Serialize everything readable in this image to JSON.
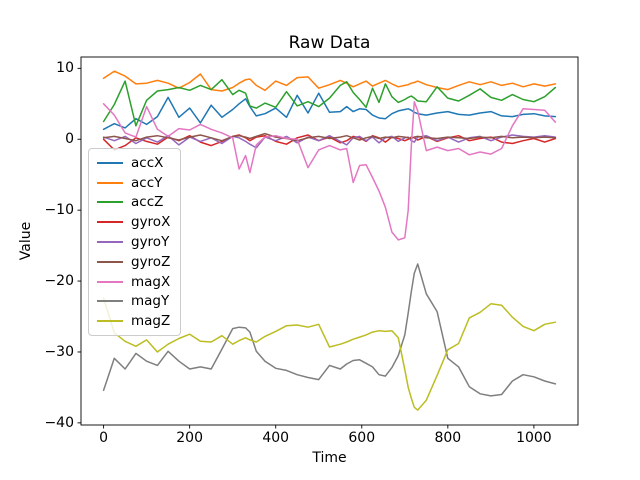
{
  "chart_data": {
    "type": "line",
    "title": "Raw Data",
    "xlabel": "Time",
    "ylabel": "Value",
    "xlim": [
      -52.5,
      1102.5
    ],
    "ylim": [
      -40.3,
      11.6
    ],
    "grid": false,
    "legend_position": "upper left",
    "x_ticks": [
      0,
      200,
      400,
      600,
      800,
      1000
    ],
    "x_tick_labels": [
      "0",
      "200",
      "400",
      "600",
      "800",
      "1000"
    ],
    "y_ticks": [
      10,
      0,
      -10,
      -20,
      -30,
      -40
    ],
    "y_tick_labels": [
      "10",
      "0",
      "−10",
      "−20",
      "−30",
      "−40"
    ],
    "x": [
      0,
      25,
      50,
      75,
      100,
      125,
      150,
      175,
      200,
      225,
      250,
      275,
      300,
      315,
      330,
      340,
      355,
      375,
      400,
      425,
      450,
      475,
      500,
      525,
      550,
      565,
      580,
      595,
      610,
      625,
      640,
      655,
      670,
      685,
      700,
      708,
      715,
      722,
      730,
      750,
      775,
      800,
      825,
      850,
      875,
      900,
      925,
      950,
      975,
      1000,
      1025,
      1050
    ],
    "series": [
      {
        "name": "accX",
        "color": "#1f77b4",
        "values": [
          1.4,
          2.2,
          1.6,
          2.9,
          2.1,
          3.2,
          5.9,
          3.1,
          4.4,
          2.3,
          4.8,
          3.1,
          4.2,
          5.0,
          5.7,
          4.6,
          3.3,
          3.6,
          4.4,
          3.1,
          6.2,
          3.7,
          6.5,
          3.8,
          3.9,
          4.6,
          3.9,
          4.3,
          4.2,
          3.4,
          3.0,
          2.9,
          3.6,
          4.0,
          4.2,
          4.3,
          4.1,
          3.8,
          3.6,
          3.4,
          3.7,
          3.9,
          3.5,
          3.4,
          3.7,
          3.9,
          3.3,
          3.2,
          3.5,
          3.6,
          3.3,
          3.2
        ]
      },
      {
        "name": "accY",
        "color": "#ff7f0e",
        "values": [
          8.6,
          9.6,
          8.9,
          7.8,
          7.9,
          8.3,
          7.9,
          7.2,
          8.0,
          9.2,
          7.0,
          6.8,
          7.3,
          7.9,
          8.4,
          8.5,
          7.6,
          6.9,
          8.2,
          7.6,
          8.7,
          8.8,
          7.2,
          7.7,
          8.3,
          7.9,
          7.4,
          7.8,
          8.2,
          7.5,
          7.9,
          8.3,
          7.8,
          7.4,
          7.6,
          7.7,
          7.9,
          8.0,
          8.2,
          7.7,
          7.3,
          7.0,
          7.6,
          8.1,
          7.7,
          8.1,
          7.6,
          7.9,
          7.4,
          7.8,
          7.5,
          7.8
        ]
      },
      {
        "name": "accZ",
        "color": "#2ca02c",
        "values": [
          2.5,
          4.9,
          8.2,
          1.9,
          5.5,
          6.8,
          7.0,
          7.3,
          6.9,
          7.6,
          7.0,
          8.4,
          6.3,
          6.9,
          6.5,
          4.7,
          4.4,
          5.1,
          4.5,
          6.7,
          4.7,
          5.3,
          4.6,
          5.8,
          7.6,
          8.1,
          6.6,
          5.6,
          4.5,
          7.2,
          5.2,
          7.8,
          6.0,
          5.2,
          5.6,
          5.9,
          6.1,
          5.8,
          5.4,
          5.3,
          7.4,
          5.8,
          5.4,
          6.2,
          7.1,
          5.9,
          5.5,
          6.3,
          5.6,
          5.3,
          6.0,
          7.3
        ]
      },
      {
        "name": "gyroX",
        "color": "#d62728",
        "values": [
          0.0,
          -1.5,
          -0.9,
          0.2,
          -0.3,
          -0.7,
          0.3,
          -0.2,
          0.5,
          -0.4,
          -0.9,
          -0.3,
          0.4,
          0.6,
          0.2,
          -0.2,
          0.3,
          0.5,
          -0.3,
          -0.7,
          0.2,
          0.6,
          -0.2,
          0.3,
          -0.5,
          -0.2,
          0.4,
          0.2,
          -0.3,
          0.5,
          0.2,
          -0.4,
          0.3,
          0.1,
          -0.2,
          0.0,
          0.3,
          0.2,
          -0.1,
          0.4,
          -0.3,
          0.2,
          0.5,
          -0.2,
          0.1,
          0.3,
          -0.4,
          -0.6,
          -0.2,
          0.1,
          -0.4,
          0.1
        ]
      },
      {
        "name": "gyroY",
        "color": "#9467bd",
        "values": [
          0.3,
          -0.2,
          0.4,
          -0.6,
          0.2,
          -0.4,
          0.5,
          -0.8,
          0.3,
          -0.3,
          0.2,
          -0.6,
          0.4,
          0.2,
          -0.3,
          -0.7,
          -1.2,
          0.3,
          -0.2,
          0.4,
          -0.5,
          0.3,
          -0.2,
          0.5,
          -0.3,
          -0.8,
          0.2,
          0.4,
          -0.2,
          0.3,
          -0.5,
          0.2,
          0.4,
          -0.3,
          0.2,
          0.3,
          -0.2,
          -0.4,
          0.3,
          0.5,
          -0.2,
          0.3,
          -0.4,
          0.2,
          0.4,
          -0.2,
          0.3,
          0.6,
          0.4,
          0.3,
          0.5,
          0.3
        ]
      },
      {
        "name": "gyroZ",
        "color": "#8c564b",
        "values": [
          0.2,
          0.4,
          0.1,
          -0.2,
          0.3,
          0.5,
          0.2,
          -0.1,
          0.3,
          0.6,
          0.2,
          -0.2,
          0.4,
          0.5,
          0.3,
          0.1,
          0.4,
          0.8,
          0.3,
          0.1,
          -0.2,
          0.2,
          0.4,
          0.1,
          0.3,
          0.5,
          0.2,
          -0.1,
          0.2,
          0.4,
          0.1,
          0.3,
          0.2,
          0.4,
          0.3,
          0.2,
          0.1,
          0.3,
          0.4,
          0.2,
          0.1,
          0.3,
          0.2,
          0.1,
          0.3,
          0.2,
          0.4,
          0.2,
          0.3,
          0.2,
          0.3,
          0.2
        ]
      },
      {
        "name": "magX",
        "color": "#e377c2",
        "values": [
          5.0,
          3.4,
          0.9,
          0.3,
          4.6,
          1.4,
          0.4,
          1.5,
          1.3,
          2.1,
          1.4,
          0.9,
          0.2,
          -4.2,
          -2.3,
          -4.7,
          -0.8,
          0.3,
          0.5,
          0.1,
          0.0,
          -4.0,
          -1.5,
          -0.9,
          -1.5,
          -1.3,
          -6.1,
          -3.7,
          -3.6,
          -5.4,
          -7.3,
          -9.6,
          -13.1,
          -14.2,
          -13.9,
          -10.0,
          -1.0,
          5.3,
          4.0,
          -1.6,
          -1.1,
          -1.6,
          -1.3,
          -2.2,
          -1.8,
          -2.1,
          -1.3,
          1.9,
          4.3,
          4.2,
          4.1,
          2.4
        ]
      },
      {
        "name": "magY",
        "color": "#7f7f7f",
        "values": [
          -35.4,
          -30.9,
          -32.4,
          -30.2,
          -31.3,
          -31.9,
          -29.9,
          -31.3,
          -32.4,
          -32.1,
          -32.4,
          -29.6,
          -26.7,
          -26.5,
          -26.6,
          -27.2,
          -29.9,
          -31.3,
          -32.3,
          -32.6,
          -33.2,
          -33.6,
          -33.9,
          -31.9,
          -32.4,
          -31.7,
          -31.2,
          -31.1,
          -31.6,
          -32.1,
          -33.2,
          -33.4,
          -32.2,
          -30.5,
          -27.6,
          -24.5,
          -21.5,
          -18.9,
          -17.6,
          -21.8,
          -24.3,
          -30.9,
          -32.1,
          -34.9,
          -35.9,
          -36.2,
          -36.0,
          -34.1,
          -33.2,
          -33.5,
          -34.1,
          -34.5
        ]
      },
      {
        "name": "magZ",
        "color": "#bcbd22",
        "values": [
          -22.4,
          -27.3,
          -28.5,
          -29.2,
          -28.3,
          -30.0,
          -28.9,
          -28.1,
          -27.5,
          -28.5,
          -28.6,
          -27.7,
          -28.9,
          -28.4,
          -28.0,
          -28.3,
          -28.6,
          -27.8,
          -27.1,
          -26.3,
          -26.2,
          -26.5,
          -26.1,
          -29.3,
          -28.9,
          -28.6,
          -28.2,
          -27.9,
          -27.6,
          -27.2,
          -27.0,
          -27.1,
          -27.0,
          -28.0,
          -32.5,
          -35.0,
          -36.5,
          -37.8,
          -38.2,
          -36.8,
          -33.3,
          -29.7,
          -28.8,
          -25.2,
          -24.4,
          -23.2,
          -23.4,
          -25.1,
          -26.4,
          -27.0,
          -26.1,
          -25.8
        ]
      }
    ]
  },
  "style": {
    "spine_color": "#000000",
    "text_color": "#000000",
    "legend_border_color": "#cccccc"
  }
}
